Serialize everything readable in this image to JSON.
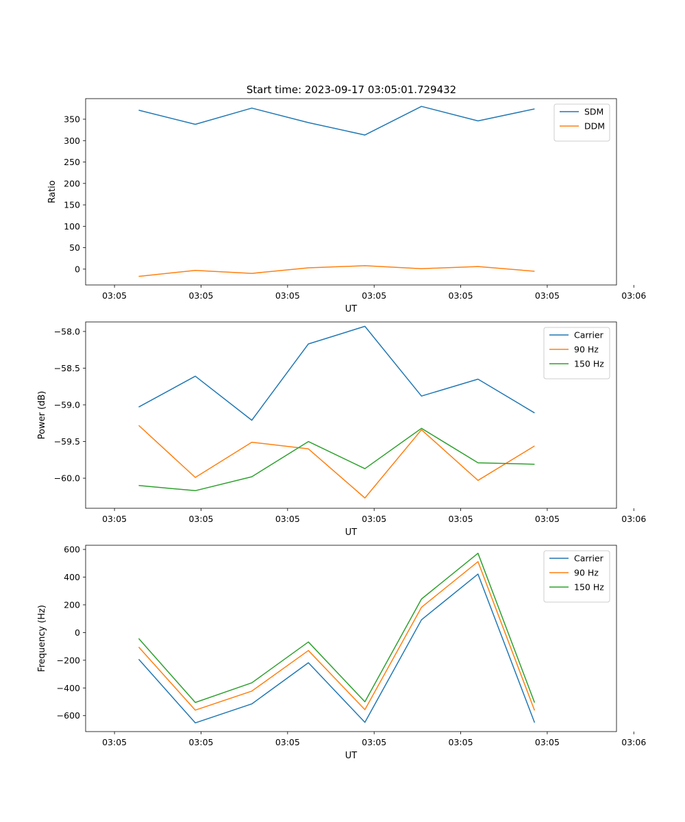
{
  "figure_title": "Start time: 2023-09-17 03:05:01.729432",
  "colors": {
    "blue": "#1f77b4",
    "orange": "#ff7f0e",
    "green": "#2ca02c"
  },
  "chart_data": [
    {
      "type": "line",
      "xlabel": "UT",
      "ylabel": "Ratio",
      "x_tick_labels": [
        "03:05",
        "03:05",
        "03:05",
        "03:05",
        "03:05",
        "03:05",
        "03:06"
      ],
      "xlim": [
        0,
        9.2
      ],
      "x": [
        0.92,
        1.9,
        2.88,
        3.86,
        4.84,
        5.82,
        6.8,
        7.78
      ],
      "ylim": [
        -37,
        398
      ],
      "y_ticks": [
        0,
        50,
        100,
        150,
        200,
        250,
        300,
        350
      ],
      "legend": "top-right",
      "series": [
        {
          "name": "SDM",
          "color": "#1f77b4",
          "values": [
            371,
            338,
            376,
            342,
            313,
            380,
            346,
            374
          ]
        },
        {
          "name": "DDM",
          "color": "#ff7f0e",
          "values": [
            -17,
            -3,
            -10,
            3,
            8,
            1,
            6,
            -5
          ]
        }
      ]
    },
    {
      "type": "line",
      "xlabel": "UT",
      "ylabel": "Power (dB)",
      "x_tick_labels": [
        "03:05",
        "03:05",
        "03:05",
        "03:05",
        "03:05",
        "03:05",
        "03:06"
      ],
      "xlim": [
        0,
        9.2
      ],
      "x": [
        0.92,
        1.9,
        2.88,
        3.86,
        4.84,
        5.82,
        6.8,
        7.78
      ],
      "ylim": [
        -60.41,
        -57.87
      ],
      "y_ticks": [
        -60.0,
        -59.5,
        -59.0,
        -58.5,
        -58.0
      ],
      "legend": "top-right",
      "series": [
        {
          "name": "Carrier",
          "color": "#1f77b4",
          "values": [
            -59.03,
            -58.61,
            -59.21,
            -58.17,
            -57.93,
            -58.88,
            -58.65,
            -59.11
          ]
        },
        {
          "name": "90 Hz",
          "color": "#ff7f0e",
          "values": [
            -59.28,
            -59.99,
            -59.51,
            -59.6,
            -60.27,
            -59.34,
            -60.03,
            -59.56
          ]
        },
        {
          "name": "150 Hz",
          "color": "#2ca02c",
          "values": [
            -60.1,
            -60.17,
            -59.98,
            -59.5,
            -59.87,
            -59.32,
            -59.79,
            -59.81
          ]
        }
      ]
    },
    {
      "type": "line",
      "xlabel": "UT",
      "ylabel": "Frequency (Hz)",
      "x_tick_labels": [
        "03:05",
        "03:05",
        "03:05",
        "03:05",
        "03:05",
        "03:05",
        "03:06"
      ],
      "xlim": [
        0,
        9.2
      ],
      "x": [
        0.92,
        1.9,
        2.88,
        3.86,
        4.84,
        5.82,
        6.8,
        7.78
      ],
      "ylim": [
        -715,
        630
      ],
      "y_ticks": [
        -600,
        -400,
        -200,
        0,
        200,
        400,
        600
      ],
      "legend": "top-right",
      "series": [
        {
          "name": "Carrier",
          "color": "#1f77b4",
          "values": [
            -193,
            -652,
            -515,
            -218,
            -648,
            92,
            422,
            -650
          ]
        },
        {
          "name": "90 Hz",
          "color": "#ff7f0e",
          "values": [
            -105,
            -560,
            -423,
            -130,
            -557,
            182,
            512,
            -562
          ]
        },
        {
          "name": "150 Hz",
          "color": "#2ca02c",
          "values": [
            -43,
            -505,
            -363,
            -68,
            -500,
            242,
            572,
            -506
          ]
        }
      ]
    }
  ]
}
